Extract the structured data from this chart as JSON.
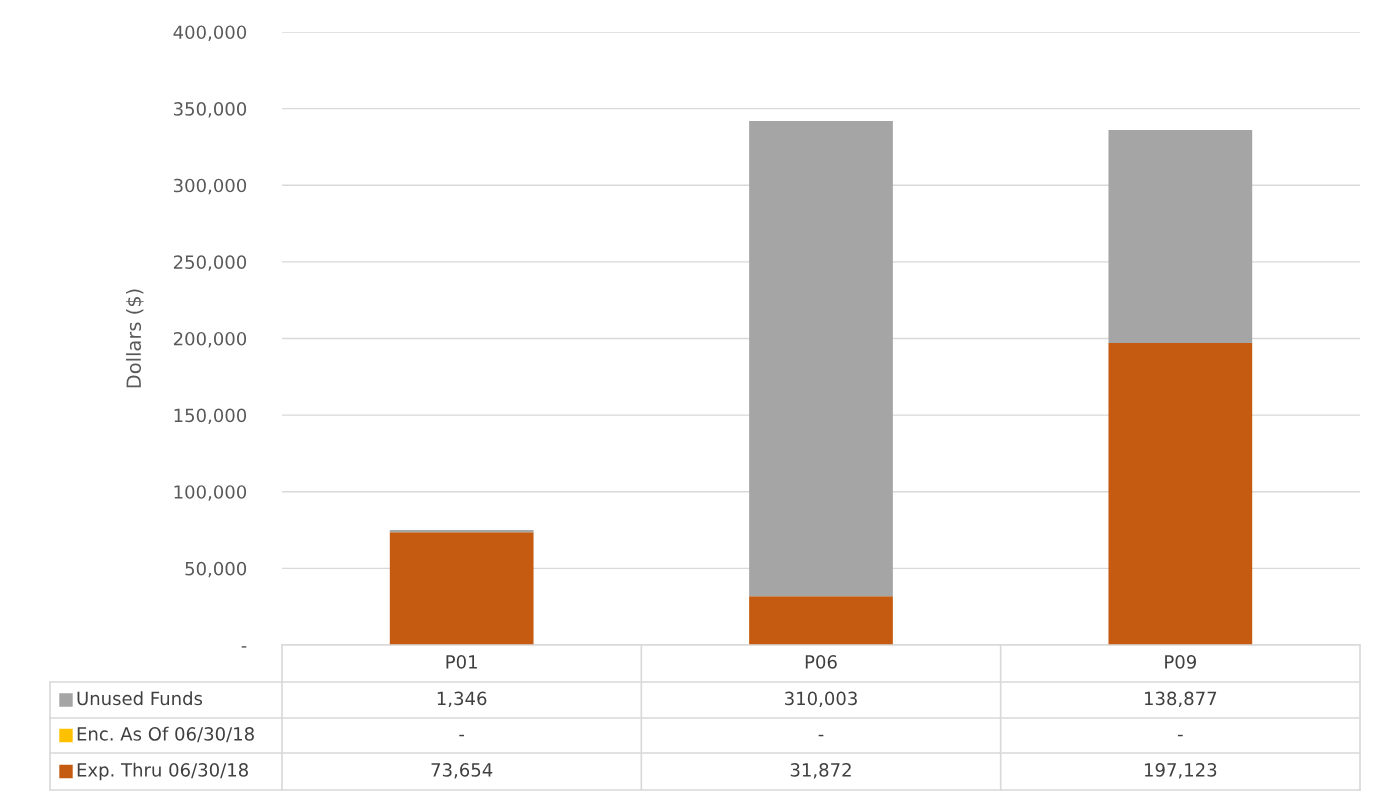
{
  "chart_data": {
    "type": "bar",
    "stacked": true,
    "ylabel": "Dollars ($)",
    "categories": [
      "P01",
      "P06",
      "P09"
    ],
    "series": [
      {
        "name": "Exp. Thru 06/30/18",
        "color": "#c55a11",
        "values": [
          73654,
          31872,
          197123
        ],
        "value_labels": [
          "73,654",
          "31,872",
          "197,123"
        ]
      },
      {
        "name": "Enc. As Of 06/30/18",
        "color": "#ffc000",
        "values": [
          0,
          0,
          0
        ],
        "value_labels": [
          "-",
          "-",
          "-"
        ]
      },
      {
        "name": "Unused Funds",
        "color": "#a5a5a5",
        "values": [
          1346,
          310003,
          138877
        ],
        "value_labels": [
          "1,346",
          "310,003",
          "138,877"
        ]
      }
    ],
    "ylim": [
      0,
      400000
    ],
    "yticks": [
      {
        "value": 0,
        "label": "-"
      },
      {
        "value": 50000,
        "label": "50,000"
      },
      {
        "value": 100000,
        "label": "100,000"
      },
      {
        "value": 150000,
        "label": "150,000"
      },
      {
        "value": 200000,
        "label": "200,000"
      },
      {
        "value": 250000,
        "label": "250,000"
      },
      {
        "value": 300000,
        "label": "300,000"
      },
      {
        "value": 350000,
        "label": "350,000"
      },
      {
        "value": 400000,
        "label": "400,000"
      }
    ],
    "grid": "y",
    "legend": "bottom"
  }
}
